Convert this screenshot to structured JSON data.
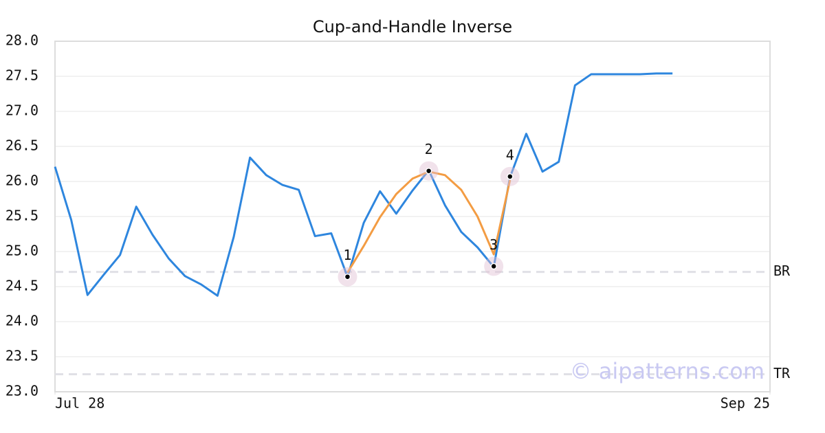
{
  "chart_data": {
    "type": "line",
    "title": "Cup-and-Handle Inverse",
    "xlim": [
      0,
      44
    ],
    "xticks": [
      {
        "value": 0,
        "label": "Jul 28"
      },
      {
        "value": 44,
        "label": "Sep 25"
      }
    ],
    "ylim": [
      23.0,
      28.0
    ],
    "yticks": [
      {
        "value": 23,
        "label": "23.0"
      },
      23.5,
      {
        "value": 24,
        "label": "24.0"
      },
      24.5,
      {
        "value": 25,
        "label": "25.0"
      },
      25.5,
      {
        "value": 26,
        "label": "26.0"
      },
      26.5,
      {
        "value": 27,
        "label": "27.0"
      },
      27.5,
      {
        "value": 28,
        "label": "28.0"
      }
    ],
    "grid": true,
    "series": [
      {
        "color": "#2e86de",
        "x": [
          0,
          1,
          2,
          3,
          4,
          5,
          6,
          7,
          8,
          9,
          10,
          11,
          12,
          13,
          14,
          15,
          16,
          17,
          18,
          19,
          20,
          21,
          22,
          23,
          24,
          25,
          26,
          27,
          28,
          29,
          30,
          31,
          32,
          33,
          34,
          35,
          36,
          37,
          38
        ],
        "values": [
          26.21,
          25.45,
          24.38,
          24.67,
          24.95,
          25.64,
          25.24,
          24.9,
          24.65,
          24.53,
          24.37,
          25.21,
          26.34,
          26.09,
          25.95,
          25.88,
          25.22,
          25.26,
          24.64,
          25.41,
          25.86,
          25.54,
          25.87,
          26.16,
          25.66,
          25.28,
          25.06,
          24.78,
          26.06,
          26.68,
          26.14,
          26.28,
          27.37,
          27.53,
          27.53,
          27.53,
          27.53,
          27.54,
          27.54
        ]
      },
      {
        "color": "#f39c43",
        "x": [
          18,
          19,
          20,
          21,
          22,
          23,
          24,
          25,
          26,
          27,
          28
        ],
        "values": [
          24.7,
          25.08,
          25.49,
          25.82,
          26.04,
          26.14,
          26.09,
          25.88,
          25.5,
          24.96,
          26.02
        ]
      }
    ],
    "markers": [
      {
        "label": "1",
        "x": 18,
        "y": 24.64
      },
      {
        "label": "2",
        "x": 23,
        "y": 26.15
      },
      {
        "label": "3",
        "x": 27,
        "y": 24.79
      },
      {
        "label": "4",
        "x": 28,
        "y": 26.07
      }
    ],
    "reference_lines": [
      {
        "label": "BR",
        "value": 24.71
      },
      {
        "label": "TR",
        "value": 23.25
      }
    ],
    "watermark": "© aipatterns.com"
  }
}
